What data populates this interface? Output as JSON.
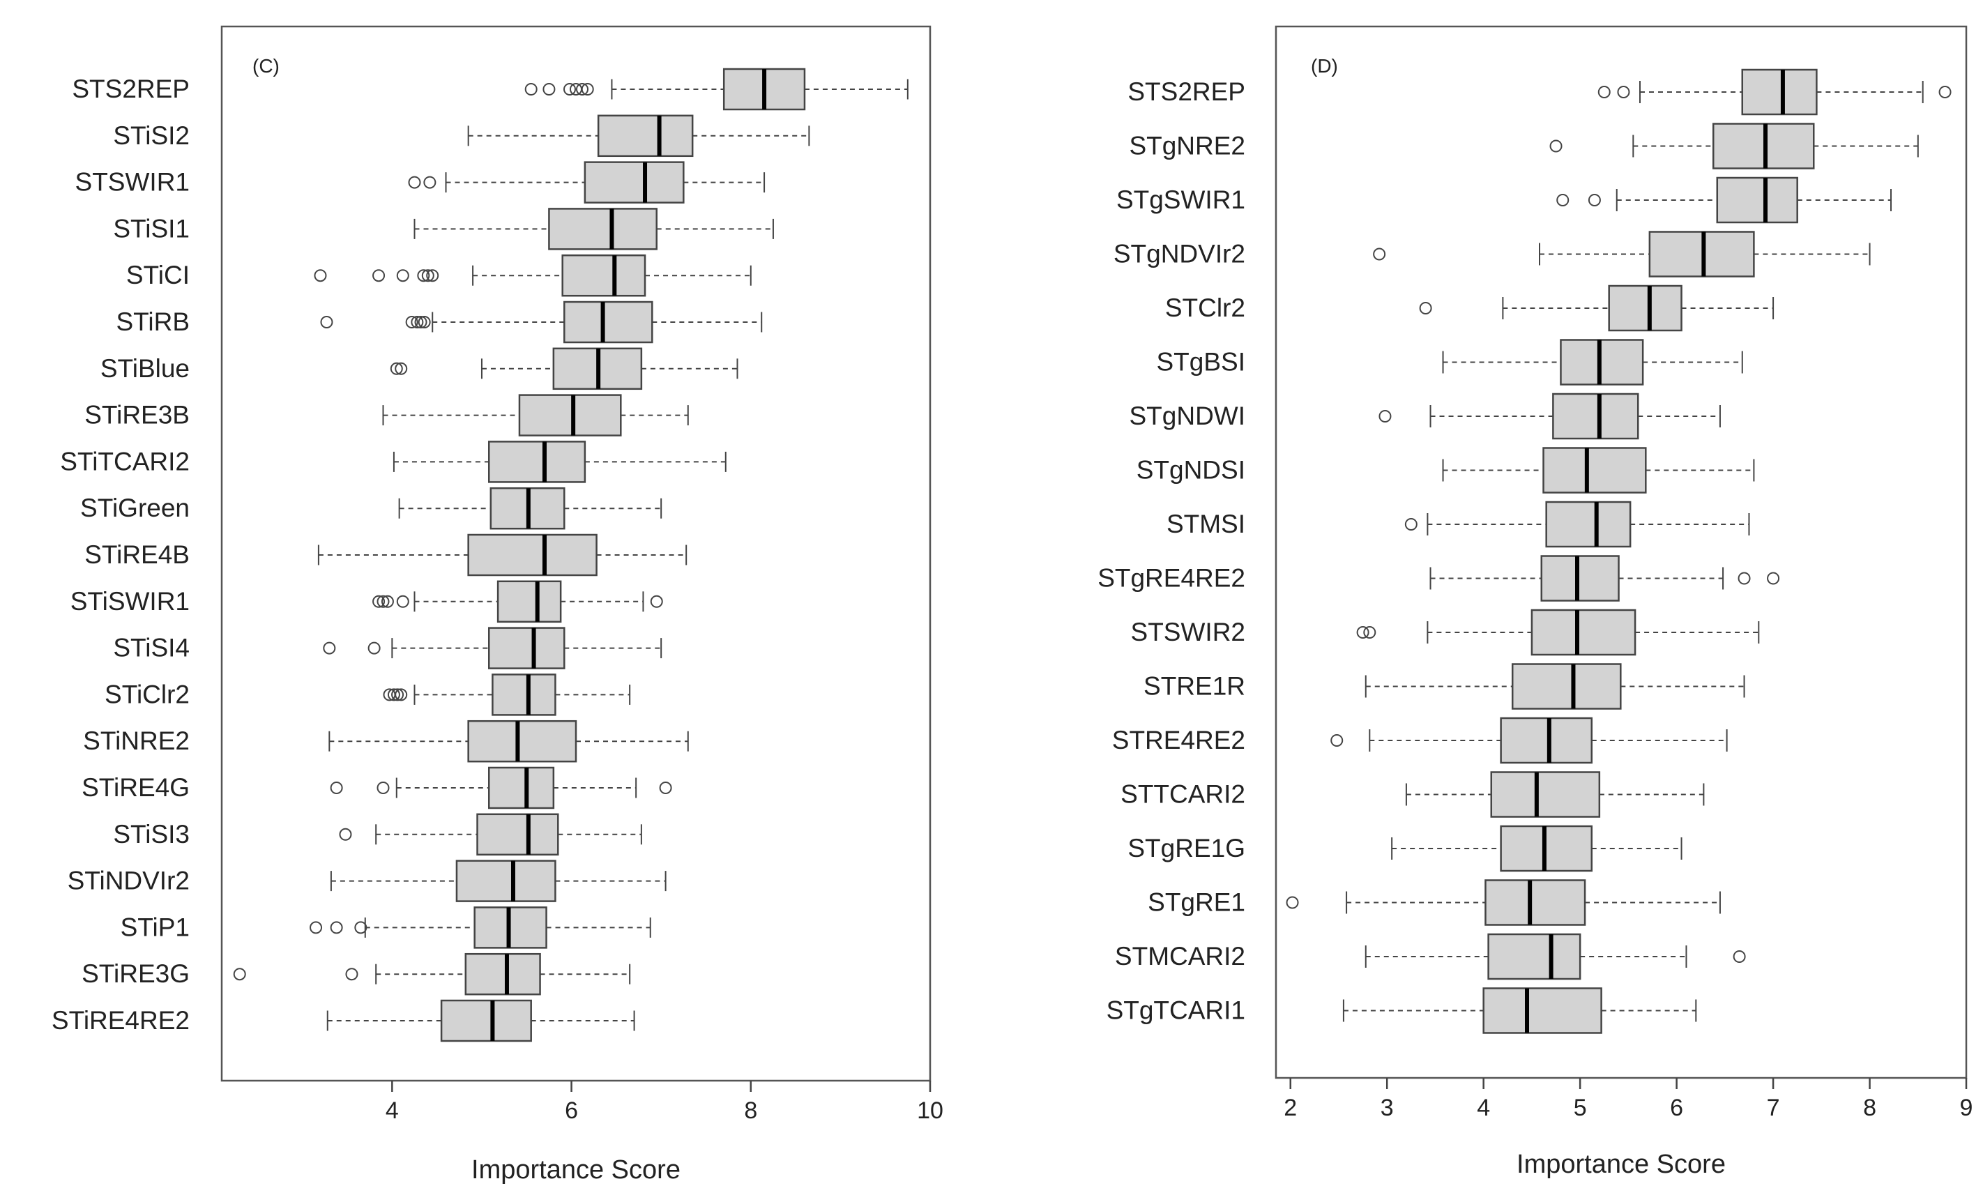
{
  "chart_data": [
    {
      "type": "boxplot",
      "panel_label": "(C)",
      "orientation": "horizontal",
      "xlabel": "Importance Score",
      "ylabel": "",
      "xlim": [
        2.1,
        10
      ],
      "xticks": [
        "4",
        "6",
        "8",
        "10"
      ],
      "categories": [
        "STS2REP",
        "STiSI2",
        "STSWIR1",
        "STiSI1",
        "STiCI",
        "STiRB",
        "STiBlue",
        "STiRE3B",
        "STiTCARI2",
        "STiGreen",
        "STiRE4B",
        "STiSWIR1",
        "STiSI4",
        "STiClr2",
        "STiNRE2",
        "STiRE4G",
        "STiSI3",
        "STiNDVIr2",
        "STiP1",
        "STiRE3G",
        "STiRE4RE2"
      ],
      "stats": [
        {
          "min": 6.45,
          "q1": 7.7,
          "median": 8.15,
          "q3": 8.6,
          "max": 9.75,
          "outliers": [
            5.55,
            5.75,
            5.98,
            6.05,
            6.12,
            6.18
          ]
        },
        {
          "min": 4.85,
          "q1": 6.3,
          "median": 6.98,
          "q3": 7.35,
          "max": 8.65,
          "outliers": []
        },
        {
          "min": 4.6,
          "q1": 6.15,
          "median": 6.82,
          "q3": 7.25,
          "max": 8.15,
          "outliers": [
            4.25,
            4.42
          ]
        },
        {
          "min": 4.25,
          "q1": 5.75,
          "median": 6.45,
          "q3": 6.95,
          "max": 8.25,
          "outliers": []
        },
        {
          "min": 4.9,
          "q1": 5.9,
          "median": 6.48,
          "q3": 6.82,
          "max": 8.0,
          "outliers": [
            3.2,
            3.85,
            4.12,
            4.35,
            4.4,
            4.45
          ]
        },
        {
          "min": 4.45,
          "q1": 5.92,
          "median": 6.35,
          "q3": 6.9,
          "max": 8.12,
          "outliers": [
            3.27,
            4.22,
            4.28,
            4.32,
            4.36
          ]
        },
        {
          "min": 5.0,
          "q1": 5.8,
          "median": 6.3,
          "q3": 6.78,
          "max": 7.85,
          "outliers": [
            4.05,
            4.1
          ]
        },
        {
          "min": 3.9,
          "q1": 5.42,
          "median": 6.02,
          "q3": 6.55,
          "max": 7.3,
          "outliers": []
        },
        {
          "min": 4.02,
          "q1": 5.08,
          "median": 5.7,
          "q3": 6.15,
          "max": 7.72,
          "outliers": []
        },
        {
          "min": 4.08,
          "q1": 5.1,
          "median": 5.52,
          "q3": 5.92,
          "max": 7.0,
          "outliers": []
        },
        {
          "min": 3.18,
          "q1": 4.85,
          "median": 5.7,
          "q3": 6.28,
          "max": 7.28,
          "outliers": []
        },
        {
          "min": 4.25,
          "q1": 5.18,
          "median": 5.62,
          "q3": 5.88,
          "max": 6.8,
          "outliers": [
            3.85,
            3.9,
            3.95,
            4.12,
            6.95
          ]
        },
        {
          "min": 4.0,
          "q1": 5.08,
          "median": 5.58,
          "q3": 5.92,
          "max": 7.0,
          "outliers": [
            3.3,
            3.8
          ]
        },
        {
          "min": 4.25,
          "q1": 5.12,
          "median": 5.52,
          "q3": 5.82,
          "max": 6.65,
          "outliers": [
            3.97,
            4.02,
            4.06,
            4.1
          ]
        },
        {
          "min": 3.3,
          "q1": 4.85,
          "median": 5.4,
          "q3": 6.05,
          "max": 7.3,
          "outliers": []
        },
        {
          "min": 4.05,
          "q1": 5.08,
          "median": 5.5,
          "q3": 5.8,
          "max": 6.72,
          "outliers": [
            3.38,
            3.9,
            7.05
          ]
        },
        {
          "min": 3.82,
          "q1": 4.95,
          "median": 5.52,
          "q3": 5.85,
          "max": 6.78,
          "outliers": [
            3.48
          ]
        },
        {
          "min": 3.32,
          "q1": 4.72,
          "median": 5.35,
          "q3": 5.82,
          "max": 7.05,
          "outliers": []
        },
        {
          "min": 3.7,
          "q1": 4.92,
          "median": 5.3,
          "q3": 5.72,
          "max": 6.88,
          "outliers": [
            3.15,
            3.38,
            3.65
          ]
        },
        {
          "min": 3.82,
          "q1": 4.82,
          "median": 5.28,
          "q3": 5.65,
          "max": 6.65,
          "outliers": [
            2.3,
            3.55
          ]
        },
        {
          "min": 3.28,
          "q1": 4.55,
          "median": 5.12,
          "q3": 5.55,
          "max": 6.7,
          "outliers": []
        }
      ]
    },
    {
      "type": "boxplot",
      "panel_label": "(D)",
      "orientation": "horizontal",
      "xlabel": "Importance Score",
      "ylabel": "",
      "xlim": [
        1.85,
        9
      ],
      "xticks": [
        "2",
        "3",
        "4",
        "5",
        "6",
        "7",
        "8",
        "9"
      ],
      "categories": [
        "STS2REP",
        "STgNRE2",
        "STgSWIR1",
        "STgNDVIr2",
        "STClr2",
        "STgBSI",
        "STgNDWI",
        "STgNDSI",
        "STMSI",
        "STgRE4RE2",
        "STSWIR2",
        "STRE1R",
        "STRE4RE2",
        "STTCARI2",
        "STgRE1G",
        "STgRE1",
        "STMCARI2",
        "STgTCARI1"
      ],
      "stats": [
        {
          "min": 5.62,
          "q1": 6.68,
          "median": 7.1,
          "q3": 7.45,
          "max": 8.55,
          "outliers": [
            5.25,
            5.45,
            8.78
          ]
        },
        {
          "min": 5.55,
          "q1": 6.38,
          "median": 6.92,
          "q3": 7.42,
          "max": 8.5,
          "outliers": [
            4.75
          ]
        },
        {
          "min": 5.38,
          "q1": 6.42,
          "median": 6.92,
          "q3": 7.25,
          "max": 8.22,
          "outliers": [
            4.82,
            5.15
          ]
        },
        {
          "min": 4.58,
          "q1": 5.72,
          "median": 6.28,
          "q3": 6.8,
          "max": 8.0,
          "outliers": [
            2.92
          ]
        },
        {
          "min": 4.2,
          "q1": 5.3,
          "median": 5.72,
          "q3": 6.05,
          "max": 7.0,
          "outliers": [
            3.4
          ]
        },
        {
          "min": 3.58,
          "q1": 4.8,
          "median": 5.2,
          "q3": 5.65,
          "max": 6.68,
          "outliers": []
        },
        {
          "min": 3.45,
          "q1": 4.72,
          "median": 5.2,
          "q3": 5.6,
          "max": 6.45,
          "outliers": [
            2.98
          ]
        },
        {
          "min": 3.58,
          "q1": 4.62,
          "median": 5.07,
          "q3": 5.68,
          "max": 6.8,
          "outliers": []
        },
        {
          "min": 3.42,
          "q1": 4.65,
          "median": 5.17,
          "q3": 5.52,
          "max": 6.75,
          "outliers": [
            3.25
          ]
        },
        {
          "min": 3.45,
          "q1": 4.6,
          "median": 4.97,
          "q3": 5.4,
          "max": 6.48,
          "outliers": [
            6.7,
            7.0
          ]
        },
        {
          "min": 3.42,
          "q1": 4.5,
          "median": 4.97,
          "q3": 5.57,
          "max": 6.85,
          "outliers": [
            2.75,
            2.82
          ]
        },
        {
          "min": 2.78,
          "q1": 4.3,
          "median": 4.93,
          "q3": 5.42,
          "max": 6.7,
          "outliers": []
        },
        {
          "min": 2.82,
          "q1": 4.18,
          "median": 4.68,
          "q3": 5.12,
          "max": 6.52,
          "outliers": [
            2.48
          ]
        },
        {
          "min": 3.2,
          "q1": 4.08,
          "median": 4.55,
          "q3": 5.2,
          "max": 6.28,
          "outliers": []
        },
        {
          "min": 3.05,
          "q1": 4.18,
          "median": 4.63,
          "q3": 5.12,
          "max": 6.05,
          "outliers": []
        },
        {
          "min": 2.58,
          "q1": 4.02,
          "median": 4.48,
          "q3": 5.05,
          "max": 6.45,
          "outliers": [
            2.02
          ]
        },
        {
          "min": 2.78,
          "q1": 4.05,
          "median": 4.7,
          "q3": 5.0,
          "max": 6.1,
          "outliers": [
            6.65
          ]
        },
        {
          "min": 2.55,
          "q1": 4.0,
          "median": 4.45,
          "q3": 5.22,
          "max": 6.2,
          "outliers": []
        }
      ]
    }
  ]
}
